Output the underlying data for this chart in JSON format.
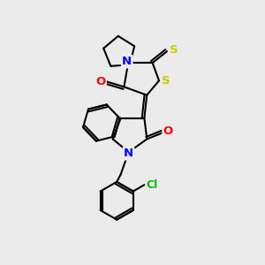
{
  "bg_color": "#ebebeb",
  "atom_colors": {
    "N": "#0000ff",
    "O": "#ff0000",
    "S": "#cccc00",
    "Cl": "#00bb00"
  },
  "lw": 1.5,
  "dlw": 1.5,
  "doff": 0.09,
  "fs": 9.5,
  "figsize": [
    3.0,
    3.0
  ],
  "dpi": 100
}
